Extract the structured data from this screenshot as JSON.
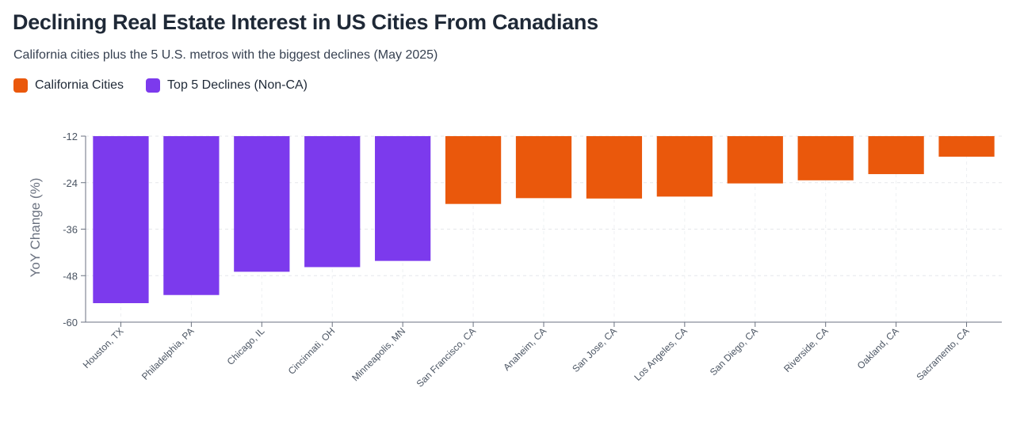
{
  "title": "Declining Real Estate Interest in US Cities From Canadians",
  "subtitle": "California cities plus the 5 U.S. metros with the biggest declines (May 2025)",
  "legend": [
    {
      "label": "California Cities",
      "color": "#ea580c"
    },
    {
      "label": "Top 5 Declines (Non-CA)",
      "color": "#7c3aed"
    }
  ],
  "chart_data": {
    "type": "bar",
    "title": "Declining Real Estate Interest in US Cities From Canadians",
    "ylabel": "YoY Change (%)",
    "xlabel": "",
    "ylim": [
      -60,
      -12
    ],
    "yticks": [
      -12,
      -24,
      -36,
      -48,
      -60
    ],
    "grid": true,
    "legend_position": "top-left",
    "categories": [
      "Houston, TX",
      "Philadelphia, PA",
      "Chicago, IL",
      "Cincinnati, OH",
      "Minneapolis, MN",
      "San Francisco, CA",
      "Anaheim, CA",
      "San Jose, CA",
      "Los Angeles, CA",
      "San Diego, CA",
      "Riverside, CA",
      "Oakland, CA",
      "Sacramento, CA"
    ],
    "values": [
      -55.1,
      -53,
      -47,
      -45.8,
      -44.2,
      -29.5,
      -28,
      -28.1,
      -27.6,
      -24.2,
      -23.4,
      -21.8,
      -17.3
    ],
    "groups": [
      "Top 5 Declines (Non-CA)",
      "Top 5 Declines (Non-CA)",
      "Top 5 Declines (Non-CA)",
      "Top 5 Declines (Non-CA)",
      "Top 5 Declines (Non-CA)",
      "California Cities",
      "California Cities",
      "California Cities",
      "California Cities",
      "California Cities",
      "California Cities",
      "California Cities",
      "California Cities"
    ]
  }
}
